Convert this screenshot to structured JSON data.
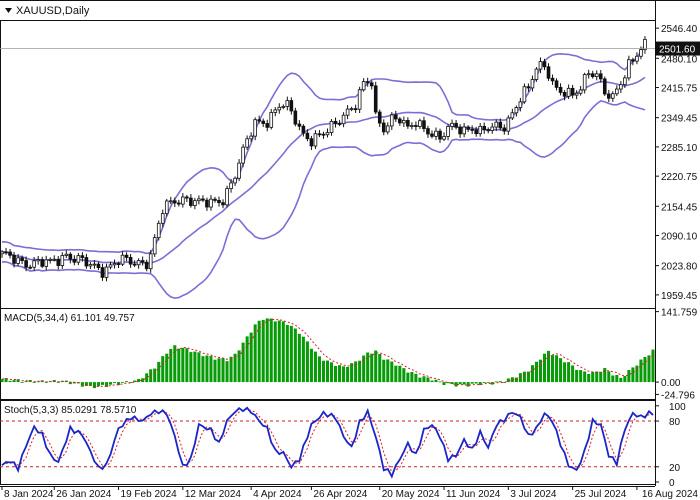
{
  "chart_data": {
    "type": "candlestick",
    "symbol_label": "XAUUSD,Daily",
    "price_marker": "2501.60",
    "colors": {
      "up": "#111111",
      "down": "#111111",
      "bands": "#7a6fd6",
      "macd": "#079b07",
      "macd_signal": "#d8202a",
      "stoch_main": "#1a26c8",
      "stoch_signal": "#d8202a",
      "level_line": "#c8202a",
      "price_marker_bg": "#111111"
    },
    "price_axis": {
      "range": [
        1935,
        2560
      ],
      "ticks": [
        "2546.40",
        "2480.10",
        "2415.75",
        "2349.45",
        "2285.10",
        "2220.75",
        "2154.45",
        "2090.10",
        "2023.80",
        "1959.45"
      ]
    },
    "x_axis": {
      "labels": [
        "8 Jan 2024",
        "26 Jan 2024",
        "19 Feb 2024",
        "12 Mar 2024",
        "4 Apr 2024",
        "26 Apr 2024",
        "20 May 2024",
        "11 Jun 2024",
        "3 Jul 2024",
        "25 Jul 2024",
        "16 Aug 2024"
      ],
      "label_bars": [
        0,
        13,
        29,
        45,
        62,
        77,
        94,
        110,
        126,
        142,
        158
      ]
    },
    "macd": {
      "label": "MACD(5,34,4) 61.101 49.757",
      "range": [
        -30,
        145
      ],
      "ticks": [
        "141.759",
        "0.00",
        "-24.796"
      ]
    },
    "stochastic": {
      "label": "Stoch(5,3,3) 85.0291 78.5710",
      "range": [
        0,
        105
      ],
      "ticks": [
        "100",
        "80",
        "20",
        "0"
      ],
      "levels": [
        80,
        20
      ]
    },
    "key_closes": [
      [
        0,
        2045
      ],
      [
        7,
        2030
      ],
      [
        12,
        2028
      ],
      [
        16,
        2050
      ],
      [
        22,
        2022
      ],
      [
        25,
        2016
      ],
      [
        29,
        2035
      ],
      [
        33,
        2028
      ],
      [
        36,
        2035
      ],
      [
        37,
        2050
      ],
      [
        40,
        2145
      ],
      [
        43,
        2165
      ],
      [
        46,
        2175
      ],
      [
        49,
        2162
      ],
      [
        52,
        2158
      ],
      [
        55,
        2172
      ],
      [
        58,
        2225
      ],
      [
        61,
        2295
      ],
      [
        63,
        2338
      ],
      [
        66,
        2345
      ],
      [
        69,
        2375
      ],
      [
        71,
        2372
      ],
      [
        73,
        2345
      ],
      [
        75,
        2315
      ],
      [
        77,
        2303
      ],
      [
        80,
        2310
      ],
      [
        83,
        2335
      ],
      [
        85,
        2360
      ],
      [
        88,
        2380
      ],
      [
        90,
        2420
      ],
      [
        92,
        2425
      ],
      [
        93,
        2350
      ],
      [
        95,
        2330
      ],
      [
        97,
        2350
      ],
      [
        99,
        2345
      ],
      [
        101,
        2320
      ],
      [
        103,
        2340
      ],
      [
        105,
        2330
      ],
      [
        107,
        2318
      ],
      [
        109,
        2300
      ],
      [
        111,
        2322
      ],
      [
        113,
        2330
      ],
      [
        115,
        2325
      ],
      [
        117,
        2330
      ],
      [
        119,
        2315
      ],
      [
        121,
        2322
      ],
      [
        123,
        2330
      ],
      [
        125,
        2335
      ],
      [
        127,
        2360
      ],
      [
        129,
        2390
      ],
      [
        131,
        2410
      ],
      [
        133,
        2460
      ],
      [
        135,
        2470
      ],
      [
        136,
        2450
      ],
      [
        138,
        2410
      ],
      [
        140,
        2400
      ],
      [
        142,
        2395
      ],
      [
        144,
        2420
      ],
      [
        146,
        2455
      ],
      [
        148,
        2445
      ],
      [
        150,
        2400
      ],
      [
        152,
        2390
      ],
      [
        154,
        2430
      ],
      [
        156,
        2470
      ],
      [
        158,
        2490
      ],
      [
        160,
        2505
      ]
    ],
    "macd_values": [
      [
        0,
        6
      ],
      [
        2,
        5
      ],
      [
        5,
        2
      ],
      [
        10,
        1
      ],
      [
        15,
        2
      ],
      [
        18,
        -3
      ],
      [
        22,
        -10
      ],
      [
        25,
        -8
      ],
      [
        30,
        -2
      ],
      [
        34,
        4
      ],
      [
        38,
        30
      ],
      [
        41,
        60
      ],
      [
        43,
        72
      ],
      [
        46,
        66
      ],
      [
        50,
        55
      ],
      [
        53,
        48
      ],
      [
        56,
        45
      ],
      [
        58,
        55
      ],
      [
        61,
        90
      ],
      [
        63,
        115
      ],
      [
        65,
        128
      ],
      [
        68,
        125
      ],
      [
        71,
        118
      ],
      [
        74,
        100
      ],
      [
        76,
        80
      ],
      [
        79,
        50
      ],
      [
        82,
        38
      ],
      [
        85,
        30
      ],
      [
        88,
        40
      ],
      [
        91,
        58
      ],
      [
        93,
        62
      ],
      [
        95,
        48
      ],
      [
        98,
        36
      ],
      [
        101,
        22
      ],
      [
        104,
        12
      ],
      [
        107,
        6
      ],
      [
        110,
        -3
      ],
      [
        113,
        -6
      ],
      [
        116,
        -6
      ],
      [
        119,
        -3
      ],
      [
        122,
        -2
      ],
      [
        125,
        2
      ],
      [
        128,
        12
      ],
      [
        131,
        24
      ],
      [
        134,
        48
      ],
      [
        136,
        62
      ],
      [
        138,
        52
      ],
      [
        141,
        38
      ],
      [
        144,
        22
      ],
      [
        147,
        18
      ],
      [
        150,
        26
      ],
      [
        152,
        16
      ],
      [
        154,
        8
      ],
      [
        156,
        22
      ],
      [
        158,
        36
      ],
      [
        160,
        50
      ],
      [
        162,
        63
      ]
    ],
    "stoch_values": [
      [
        0,
        22
      ],
      [
        2,
        28
      ],
      [
        4,
        18
      ],
      [
        6,
        48
      ],
      [
        8,
        72
      ],
      [
        10,
        62
      ],
      [
        12,
        35
      ],
      [
        14,
        26
      ],
      [
        17,
        70
      ],
      [
        20,
        62
      ],
      [
        22,
        40
      ],
      [
        24,
        18
      ],
      [
        26,
        22
      ],
      [
        29,
        70
      ],
      [
        32,
        85
      ],
      [
        35,
        80
      ],
      [
        37,
        90
      ],
      [
        39,
        93
      ],
      [
        41,
        90
      ],
      [
        43,
        60
      ],
      [
        45,
        20
      ],
      [
        47,
        30
      ],
      [
        49,
        75
      ],
      [
        52,
        68
      ],
      [
        54,
        50
      ],
      [
        56,
        80
      ],
      [
        58,
        93
      ],
      [
        60,
        96
      ],
      [
        62,
        93
      ],
      [
        64,
        80
      ],
      [
        66,
        70
      ],
      [
        68,
        40
      ],
      [
        70,
        38
      ],
      [
        72,
        20
      ],
      [
        74,
        30
      ],
      [
        77,
        75
      ],
      [
        80,
        90
      ],
      [
        83,
        85
      ],
      [
        85,
        60
      ],
      [
        87,
        45
      ],
      [
        89,
        78
      ],
      [
        91,
        92
      ],
      [
        93,
        60
      ],
      [
        95,
        18
      ],
      [
        97,
        10
      ],
      [
        99,
        30
      ],
      [
        101,
        50
      ],
      [
        103,
        35
      ],
      [
        105,
        68
      ],
      [
        107,
        75
      ],
      [
        109,
        60
      ],
      [
        111,
        30
      ],
      [
        113,
        35
      ],
      [
        115,
        55
      ],
      [
        117,
        42
      ],
      [
        119,
        65
      ],
      [
        121,
        45
      ],
      [
        123,
        75
      ],
      [
        125,
        82
      ],
      [
        127,
        92
      ],
      [
        129,
        85
      ],
      [
        131,
        60
      ],
      [
        133,
        70
      ],
      [
        135,
        90
      ],
      [
        137,
        80
      ],
      [
        139,
        50
      ],
      [
        141,
        22
      ],
      [
        143,
        15
      ],
      [
        145,
        40
      ],
      [
        147,
        80
      ],
      [
        149,
        75
      ],
      [
        151,
        35
      ],
      [
        153,
        25
      ],
      [
        155,
        70
      ],
      [
        157,
        90
      ],
      [
        159,
        85
      ],
      [
        161,
        90
      ]
    ]
  }
}
